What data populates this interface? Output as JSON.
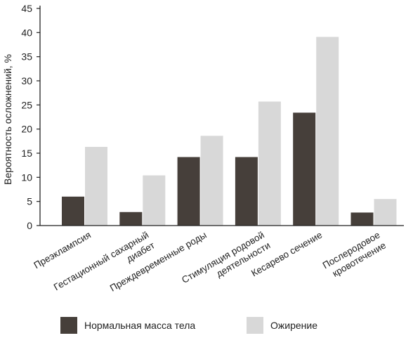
{
  "chart_data": {
    "type": "bar",
    "ylabel": "Вероятность осложнений, %",
    "ylim": [
      0,
      45
    ],
    "yticks": [
      0,
      5,
      10,
      15,
      20,
      25,
      30,
      35,
      40,
      45
    ],
    "categories": [
      [
        "Преэклампсия"
      ],
      [
        "Гестационный сахарный",
        "диабет"
      ],
      [
        "Преждевременные роды"
      ],
      [
        "Стимуляция родовой",
        "деятельности"
      ],
      [
        "Кесарево сечение"
      ],
      [
        "Послеродовое",
        "кровотечение"
      ]
    ],
    "series": [
      {
        "name": "Нормальная масса тела",
        "color": "#463f3a",
        "values": [
          6.0,
          2.8,
          14.2,
          14.2,
          23.4,
          2.7
        ]
      },
      {
        "name": "Ожирение",
        "color": "#d8d8d8",
        "values": [
          16.3,
          10.4,
          18.6,
          25.7,
          39.1,
          5.5
        ]
      }
    ],
    "grid": false,
    "legend": "bottom"
  }
}
